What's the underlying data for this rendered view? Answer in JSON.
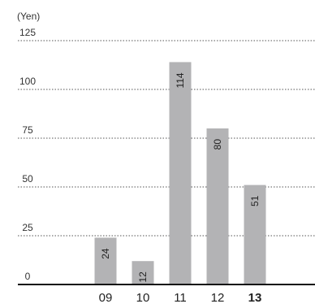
{
  "chart_data": {
    "type": "bar",
    "unit_label": "(Yen)",
    "title": "",
    "xlabel": "",
    "ylabel": "(Yen)",
    "categories": [
      "09",
      "10",
      "11",
      "12",
      "13"
    ],
    "values": [
      24,
      12,
      114,
      80,
      51
    ],
    "highlighted_category": "13",
    "ylim": [
      0,
      125
    ],
    "yticks": [
      0,
      25,
      50,
      75,
      100,
      125
    ],
    "grid": true,
    "grid_style": "dotted",
    "bar_color": "#b3b3b5",
    "data_label_orientation": "vertical"
  }
}
